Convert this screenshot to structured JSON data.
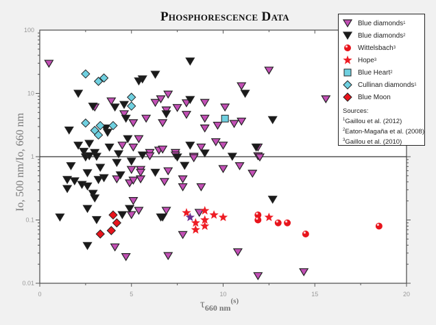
{
  "chart_data": {
    "type": "scatter",
    "title": "Phosphorescence Data",
    "xlabel": {
      "symbol": "τ",
      "subscript": "660 nm",
      "superscript": "(s)"
    },
    "ylabel": "Io, 500 nm/Io, 660 nm",
    "xlim": [
      0,
      20
    ],
    "ylim": [
      0.01,
      100
    ],
    "yscale": "log",
    "x_ticks": [
      "0",
      "5",
      "10",
      "15",
      "20"
    ],
    "y_ticks": [
      "0.01",
      "0.1",
      "1",
      "10",
      "100"
    ],
    "reference_line_y": 1,
    "grid": false,
    "legend_placement": "top-right",
    "series": [
      {
        "name": "Blue diamonds",
        "sup": "1",
        "marker": "triangle-down",
        "color": "#c24fb5",
        "points": [
          [
            0.5,
            29.5
          ],
          [
            3.9,
            7.5
          ],
          [
            3.0,
            6.0
          ],
          [
            4.6,
            4.7
          ],
          [
            5.1,
            3.4
          ],
          [
            5.8,
            4.0
          ],
          [
            6.3,
            7.1
          ],
          [
            5.4,
            1.9
          ],
          [
            4.5,
            1.5
          ],
          [
            5.1,
            1.4
          ],
          [
            6.0,
            1.15
          ],
          [
            6.5,
            1.25
          ],
          [
            6.0,
            1.02
          ],
          [
            5.0,
            0.62
          ],
          [
            5.5,
            0.62
          ],
          [
            5.5,
            0.56
          ],
          [
            4.2,
            0.44
          ],
          [
            4.9,
            0.38
          ],
          [
            5.1,
            0.42
          ],
          [
            5.5,
            0.44
          ],
          [
            5.1,
            0.2
          ],
          [
            5.4,
            0.14
          ],
          [
            5.0,
            0.12
          ],
          [
            4.1,
            0.037
          ],
          [
            4.7,
            0.026
          ],
          [
            12.5,
            23
          ],
          [
            11.0,
            13
          ],
          [
            7.0,
            9.6
          ],
          [
            6.6,
            8.1
          ],
          [
            8.0,
            7.0
          ],
          [
            9.0,
            7.1
          ],
          [
            7.5,
            5.9
          ],
          [
            6.9,
            5.4
          ],
          [
            10.1,
            6.0
          ],
          [
            8.0,
            4.6
          ],
          [
            9.0,
            4.0
          ],
          [
            6.7,
            3.4
          ],
          [
            9.7,
            3.1
          ],
          [
            9.0,
            2.8
          ],
          [
            10.6,
            3.3
          ],
          [
            11.0,
            3.6
          ],
          [
            9.6,
            1.7
          ],
          [
            10.0,
            1.5
          ],
          [
            8.8,
            1.4
          ],
          [
            6.7,
            1.3
          ],
          [
            7.4,
            1.15
          ],
          [
            7.4,
            1.05
          ],
          [
            8.4,
            1.0
          ],
          [
            11.9,
            1.4
          ],
          [
            11.9,
            1.02
          ],
          [
            8.4,
            0.95
          ],
          [
            12.0,
            0.975
          ],
          [
            7.0,
            0.59
          ],
          [
            10.0,
            0.64
          ],
          [
            10.9,
            0.71
          ],
          [
            11.6,
            0.54
          ],
          [
            6.8,
            0.4
          ],
          [
            7.8,
            0.44
          ],
          [
            7.8,
            0.33
          ],
          [
            8.8,
            0.33
          ],
          [
            6.9,
            0.14
          ],
          [
            8.7,
            0.13
          ],
          [
            7.8,
            0.058
          ],
          [
            7.0,
            0.027
          ],
          [
            10.8,
            0.031
          ],
          [
            11.9,
            0.013
          ],
          [
            15.6,
            8.1
          ],
          [
            14.4,
            0.015
          ]
        ]
      },
      {
        "name": "Blue diamonds",
        "sup": "2",
        "marker": "triangle-down",
        "color": "#1a1a1a",
        "points": [
          [
            8.2,
            32
          ],
          [
            6.3,
            19.8
          ],
          [
            5.6,
            16.7
          ],
          [
            5.4,
            15.5
          ],
          [
            2.1,
            9.9
          ],
          [
            2.9,
            6.2
          ],
          [
            4.1,
            6.0
          ],
          [
            4.6,
            6.6
          ],
          [
            4.7,
            4.0
          ],
          [
            3.6,
            2.8
          ],
          [
            3.7,
            2.4
          ],
          [
            1.6,
            2.6
          ],
          [
            2.1,
            1.5
          ],
          [
            2.7,
            1.6
          ],
          [
            3.8,
            1.4
          ],
          [
            4.8,
            1.9
          ],
          [
            4.3,
            1.1
          ],
          [
            2.4,
            1.2
          ],
          [
            3.0,
            1.15
          ],
          [
            5.6,
            1.05
          ],
          [
            2.5,
            0.975
          ],
          [
            2.7,
            1.02
          ],
          [
            3.1,
            1.0
          ],
          [
            1.7,
            0.71
          ],
          [
            2.6,
            0.55
          ],
          [
            3.3,
            0.67
          ],
          [
            4.2,
            0.8
          ],
          [
            5.0,
            0.84
          ],
          [
            1.5,
            0.43
          ],
          [
            1.9,
            0.41
          ],
          [
            2.3,
            0.36
          ],
          [
            2.6,
            0.34
          ],
          [
            1.5,
            0.31
          ],
          [
            3.5,
            0.46
          ],
          [
            3.2,
            0.43
          ],
          [
            4.4,
            0.51
          ],
          [
            2.9,
            0.26
          ],
          [
            3.0,
            0.22
          ],
          [
            2.6,
            0.15
          ],
          [
            4.9,
            0.15
          ],
          [
            4.5,
            0.12
          ],
          [
            1.1,
            0.11
          ],
          [
            3.1,
            0.1
          ],
          [
            2.6,
            0.039
          ],
          [
            6.3,
            0.56
          ],
          [
            6.6,
            0.11
          ],
          [
            11.2,
            9.9
          ],
          [
            8.2,
            7.9
          ],
          [
            6.9,
            4.7
          ],
          [
            12.7,
            3.8
          ],
          [
            8.2,
            1.5
          ],
          [
            9.0,
            1.13
          ],
          [
            11.8,
            1.4
          ],
          [
            10.5,
            1.0
          ],
          [
            7.5,
            0.975
          ],
          [
            7.9,
            0.72
          ],
          [
            12.7,
            0.21
          ],
          [
            6.7,
            0.11
          ]
        ]
      },
      {
        "name": "Wittelsbach",
        "sup": "3",
        "marker": "sphere",
        "color": "#e8141c",
        "points": [
          [
            11.9,
            0.12
          ],
          [
            11.9,
            0.1
          ],
          [
            13.0,
            0.09
          ],
          [
            13.5,
            0.09
          ],
          [
            14.5,
            0.06
          ],
          [
            18.5,
            0.08
          ]
        ]
      },
      {
        "name": "Hope",
        "sup": "3",
        "marker": "star",
        "color": "#ee1c24",
        "points": [
          [
            8.0,
            0.13
          ],
          [
            8.5,
            0.09
          ],
          [
            8.5,
            0.07
          ],
          [
            9.0,
            0.14
          ],
          [
            9.0,
            0.1
          ],
          [
            9.0,
            0.08
          ],
          [
            9.5,
            0.12
          ],
          [
            10.0,
            0.11
          ],
          [
            12.5,
            0.11
          ]
        ],
        "highlight_point": {
          "point": [
            8.2,
            0.11
          ],
          "color": "#6b2f8f"
        }
      },
      {
        "name": "Blue Heart",
        "sup": "2",
        "marker": "square",
        "color": "#6fd0e0",
        "points": [
          [
            10.1,
            4.0
          ]
        ]
      },
      {
        "name": "Cullinan diamonds",
        "sup": "1",
        "marker": "diamond",
        "color": "#6fd0e0",
        "points": [
          [
            2.5,
            20.3
          ],
          [
            3.2,
            15.5
          ],
          [
            3.5,
            17.5
          ],
          [
            5.0,
            8.7
          ],
          [
            5.0,
            6.3
          ],
          [
            2.5,
            3.4
          ],
          [
            3.0,
            2.6
          ],
          [
            3.3,
            3.1
          ],
          [
            3.2,
            2.2
          ],
          [
            4.0,
            3.1
          ]
        ]
      },
      {
        "name": "Blue Moon",
        "sup": "",
        "marker": "diamond",
        "color": "#e8141c",
        "points": [
          [
            4.0,
            0.12
          ],
          [
            4.2,
            0.09
          ],
          [
            3.9,
            0.068
          ],
          [
            3.3,
            0.06
          ]
        ]
      }
    ],
    "sources": {
      "heading": "Sources:",
      "items": [
        {
          "sup": "1",
          "text": "Gaillou et al. (2012)"
        },
        {
          "sup": "2",
          "text": "Eaton-Magaña et al. (2008)"
        },
        {
          "sup": "3",
          "text": "Gaillou et al. (2010)"
        }
      ]
    }
  }
}
